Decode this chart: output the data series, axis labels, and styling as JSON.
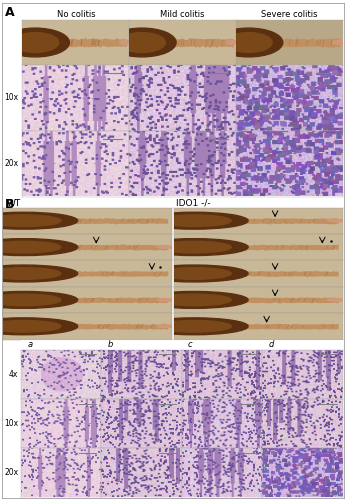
{
  "figure_width": 3.46,
  "figure_height": 5.0,
  "dpi": 100,
  "background_color": "#ffffff",
  "border_color": "#000000",
  "panel_A": {
    "label": "A",
    "col_labels": [
      "No colitis",
      "Mild colitis",
      "Severe colitis"
    ],
    "row_labels": [
      "10x",
      "20x"
    ],
    "gross_bg": "#d0c0a0",
    "micro_he_colors_10x": [
      "#e8d8e8",
      "#dcc8e0",
      "#cfc0df"
    ],
    "micro_he_colors_20x": [
      "#e8d8e8",
      "#dcc8e0",
      "#cfc0df"
    ]
  },
  "panel_B": {
    "label": "B",
    "wt_label": "WT",
    "ido_label": "IDO1 -/-",
    "gross_bg": "#c8b898",
    "micro_labels_col": [
      "a",
      "b",
      "c",
      "d"
    ],
    "micro_row_labels": [
      "4x",
      "10x",
      "20x"
    ]
  },
  "text_color": "#000000",
  "label_fontsize_bold": 9,
  "col_label_fontsize": 6,
  "row_label_fontsize": 5.5,
  "sub_label_fontsize": 6
}
